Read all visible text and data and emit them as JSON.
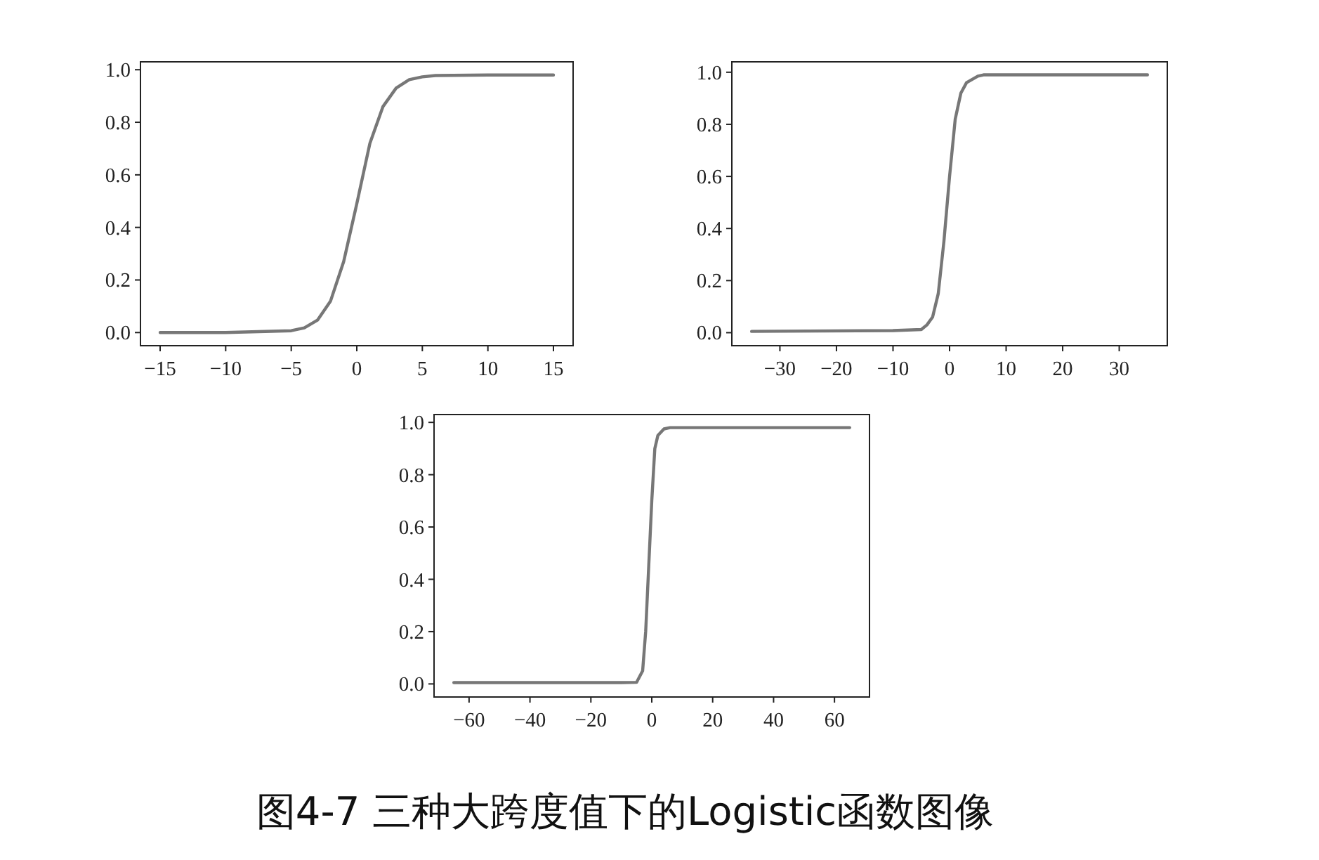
{
  "chart_data": [
    {
      "type": "line",
      "x": [
        -15,
        -10,
        -5,
        -4,
        -3,
        -2,
        -1,
        0,
        1,
        2,
        3,
        4,
        5,
        6,
        10,
        15
      ],
      "series": [
        {
          "color": "#777777",
          "values": [
            0.0,
            0.0,
            0.007,
            0.018,
            0.047,
            0.12,
            0.27,
            0.49,
            0.72,
            0.86,
            0.93,
            0.962,
            0.973,
            0.978,
            0.98,
            0.98
          ]
        }
      ],
      "xlim": [
        -16.5,
        16.5
      ],
      "ylim": [
        -0.05,
        1.03
      ],
      "xticks": [
        {
          "value": -15,
          "label": "−15"
        },
        {
          "value": -10,
          "label": "−10"
        },
        {
          "value": -5,
          "label": "−5"
        },
        0,
        5,
        10,
        15
      ],
      "yticks": [
        {
          "value": 0,
          "label": "0.0"
        },
        {
          "value": 0.2,
          "label": "0.2"
        },
        {
          "value": 0.4,
          "label": "0.4"
        },
        {
          "value": 0.6,
          "label": "0.6"
        },
        {
          "value": 0.8,
          "label": "0.8"
        },
        {
          "value": 1,
          "label": "1.0"
        }
      ],
      "grid": false
    },
    {
      "type": "line",
      "x": [
        -35,
        -10,
        -5,
        -4,
        -3,
        -2,
        -1,
        0,
        1,
        2,
        3,
        5,
        6,
        35
      ],
      "series": [
        {
          "color": "#777777",
          "values": [
            0.005,
            0.008,
            0.012,
            0.03,
            0.06,
            0.15,
            0.35,
            0.6,
            0.82,
            0.92,
            0.96,
            0.985,
            0.99,
            0.99
          ]
        }
      ],
      "xlim": [
        -38.5,
        38.5
      ],
      "ylim": [
        -0.05,
        1.04
      ],
      "xticks": [
        {
          "value": -30,
          "label": "−30"
        },
        {
          "value": -20,
          "label": "−20"
        },
        {
          "value": -10,
          "label": "−10"
        },
        0,
        10,
        20,
        30
      ],
      "yticks": [
        {
          "value": 0,
          "label": "0.0"
        },
        {
          "value": 0.2,
          "label": "0.2"
        },
        {
          "value": 0.4,
          "label": "0.4"
        },
        {
          "value": 0.6,
          "label": "0.6"
        },
        {
          "value": 0.8,
          "label": "0.8"
        },
        {
          "value": 1,
          "label": "1.0"
        }
      ],
      "grid": false
    },
    {
      "type": "line",
      "x": [
        -65,
        -10,
        -5,
        -3,
        -2,
        -1,
        0,
        1,
        2,
        4,
        6,
        65
      ],
      "series": [
        {
          "color": "#777777",
          "values": [
            0.005,
            0.005,
            0.006,
            0.05,
            0.2,
            0.45,
            0.7,
            0.9,
            0.95,
            0.975,
            0.98,
            0.98
          ]
        }
      ],
      "xlim": [
        -71.5,
        71.5
      ],
      "ylim": [
        -0.05,
        1.03
      ],
      "xticks": [
        {
          "value": -60,
          "label": "−60"
        },
        {
          "value": -40,
          "label": "−40"
        },
        {
          "value": -20,
          "label": "−20"
        },
        0,
        20,
        40,
        60
      ],
      "yticks": [
        {
          "value": 0,
          "label": "0.0"
        },
        {
          "value": 0.2,
          "label": "0.2"
        },
        {
          "value": 0.4,
          "label": "0.4"
        },
        {
          "value": 0.6,
          "label": "0.6"
        },
        {
          "value": 0.8,
          "label": "0.8"
        },
        {
          "value": 1,
          "label": "1.0"
        }
      ],
      "grid": false,
      "annotations": [
        "图4-7 三种大跨度值下的Logistic函数图像"
      ]
    }
  ]
}
